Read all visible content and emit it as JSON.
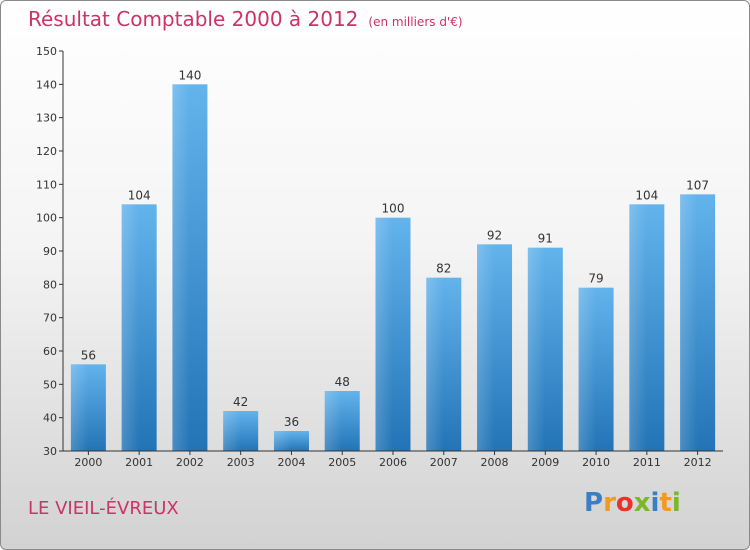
{
  "chart_data": {
    "type": "bar",
    "title": "Résultat Comptable 2000 à 2012",
    "subtitle": "(en milliers d'€)",
    "categories": [
      "2000",
      "2001",
      "2002",
      "2003",
      "2004",
      "2005",
      "2006",
      "2007",
      "2008",
      "2009",
      "2010",
      "2011",
      "2012"
    ],
    "values": [
      56,
      104,
      140,
      42,
      36,
      48,
      100,
      82,
      92,
      91,
      79,
      104,
      107
    ],
    "ylim": [
      30,
      150
    ],
    "yticks": [
      30,
      40,
      50,
      60,
      70,
      80,
      90,
      100,
      110,
      120,
      130,
      140,
      150
    ],
    "xlabel": "",
    "ylabel": "",
    "grid": false
  },
  "location": "LE VIEIL-ÉVREUX",
  "logo": {
    "text": "Proxiti",
    "letters": [
      "P",
      "r",
      "o",
      "x",
      "i",
      "t",
      "i"
    ],
    "colors": [
      "#3a7fc4",
      "#f39a1e",
      "#e8332a",
      "#7ab829",
      "#3a7fc4",
      "#f39a1e",
      "#7ab829"
    ]
  },
  "colors": {
    "title": "#cc3366",
    "bar_light": "#63b3ec",
    "bar_dark": "#2274b6",
    "axis": "#333333"
  }
}
